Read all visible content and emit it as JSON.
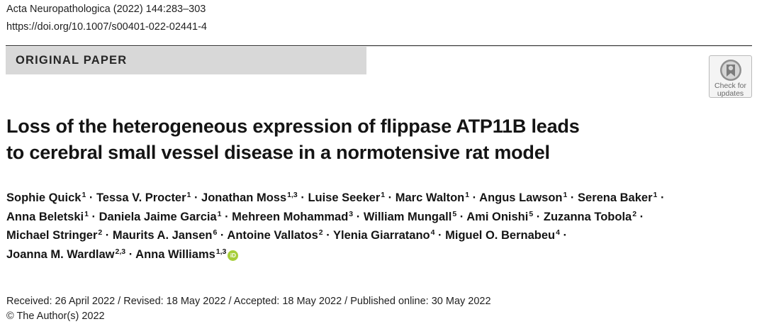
{
  "journal": {
    "citation": "Acta Neuropathologica (2022) 144:283–303",
    "doi": "https://doi.org/10.1007/s00401-022-02441-4"
  },
  "banner": {
    "label": "ORIGINAL PAPER"
  },
  "badge": {
    "line1": "Check for",
    "line2": "updates",
    "icon": "crossmark-icon"
  },
  "title": {
    "line1": "Loss of the heterogeneous expression of flippase ATP11B leads",
    "line2": "to cerebral small vessel disease in a normotensive rat model"
  },
  "separator": " · ",
  "authors": {
    "rows": [
      [
        {
          "name": "Sophie Quick",
          "aff": "1"
        },
        {
          "name": "Tessa V. Procter",
          "aff": "1"
        },
        {
          "name": "Jonathan Moss",
          "aff": "1,3"
        },
        {
          "name": "Luise Seeker",
          "aff": "1"
        },
        {
          "name": "Marc Walton",
          "aff": "1"
        },
        {
          "name": "Angus Lawson",
          "aff": "1"
        },
        {
          "name": "Serena Baker",
          "aff": "1"
        }
      ],
      [
        {
          "name": "Anna Beletski",
          "aff": "1"
        },
        {
          "name": "Daniela Jaime Garcia",
          "aff": "1"
        },
        {
          "name": "Mehreen Mohammad",
          "aff": "3"
        },
        {
          "name": "William Mungall",
          "aff": "5"
        },
        {
          "name": "Ami Onishi",
          "aff": "5"
        },
        {
          "name": "Zuzanna Tobola",
          "aff": "2"
        }
      ],
      [
        {
          "name": "Michael Stringer",
          "aff": "2"
        },
        {
          "name": "Maurits A. Jansen",
          "aff": "6"
        },
        {
          "name": "Antoine Vallatos",
          "aff": "2"
        },
        {
          "name": "Ylenia Giarratano",
          "aff": "4"
        },
        {
          "name": "Miguel O. Bernabeu",
          "aff": "4"
        }
      ],
      [
        {
          "name": "Joanna M. Wardlaw",
          "aff": "2,3"
        },
        {
          "name": "Anna Williams",
          "aff": "1,3",
          "orcid": true
        }
      ]
    ],
    "orcid_label": "iD"
  },
  "history": {
    "dates": "Received: 26 April 2022 / Revised: 18 May 2022 / Accepted: 18 May 2022 / Published online: 30 May 2022",
    "copyright": "© The Author(s) 2022"
  },
  "colors": {
    "banner_bg": "#d8d8d8",
    "orcid": "#a6ce39",
    "text": "#141414"
  }
}
